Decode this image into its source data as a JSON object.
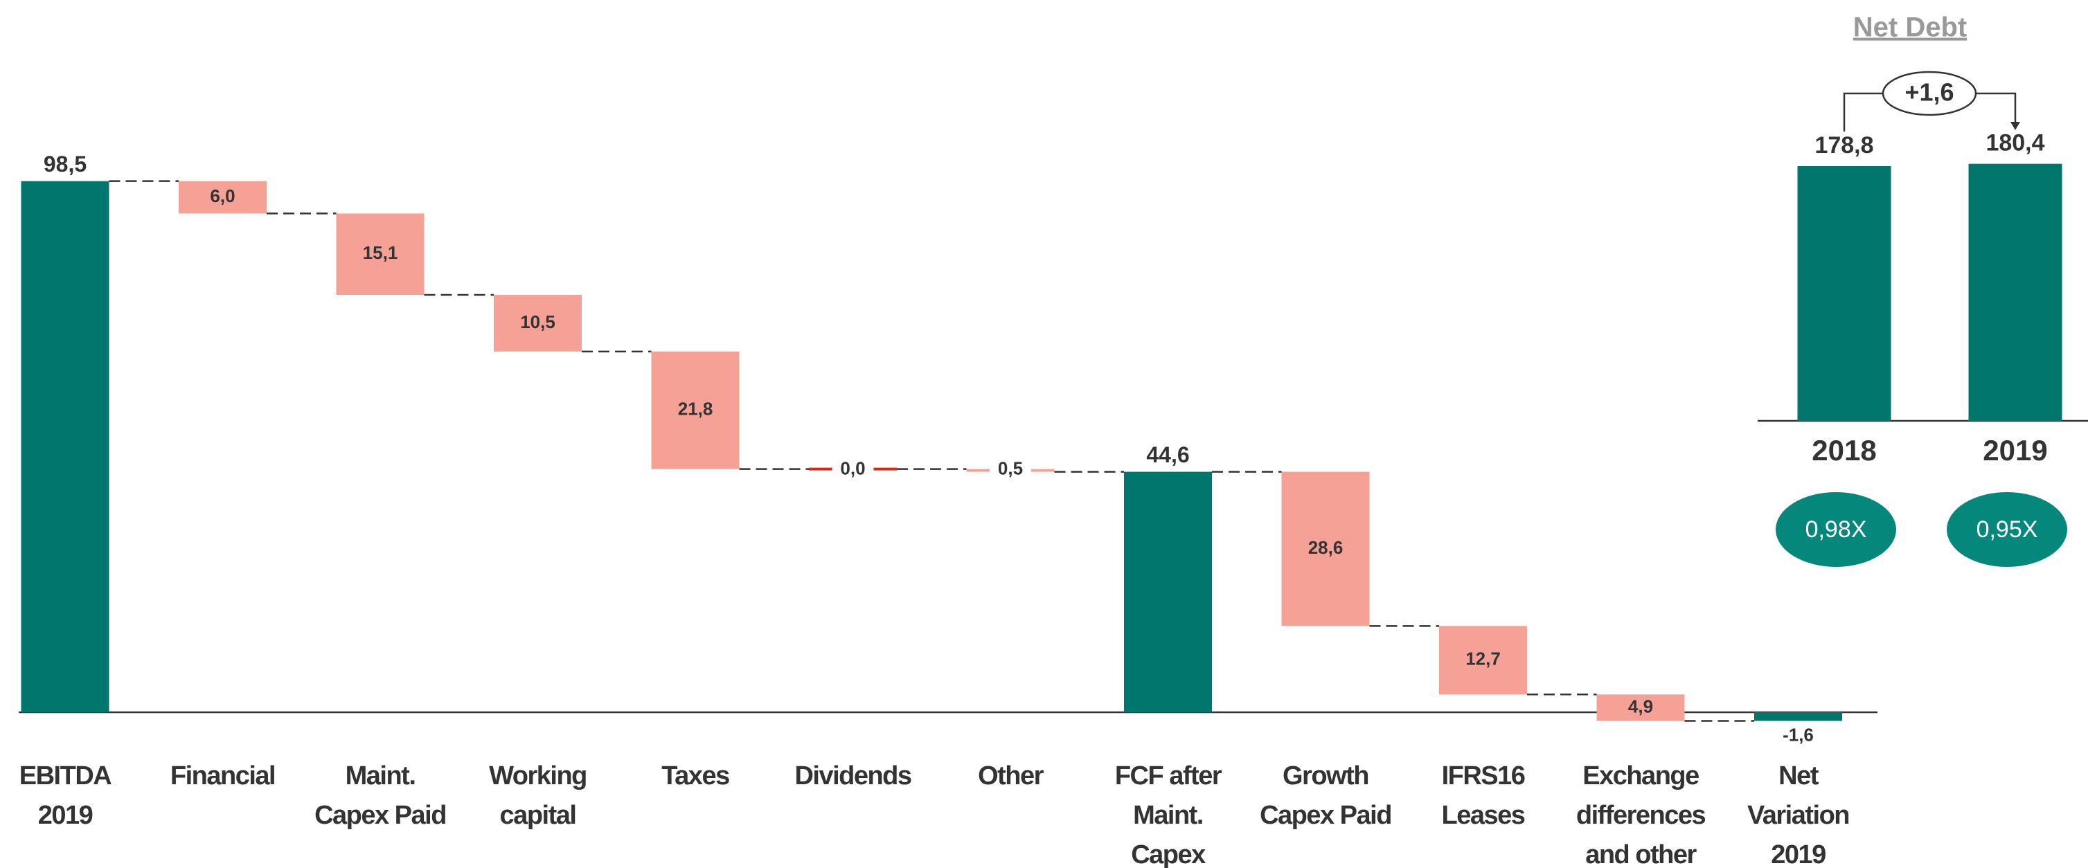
{
  "chart_data": [
    {
      "type": "waterfall",
      "categories": [
        [
          "EBITDA",
          "2019"
        ],
        [
          "Financial"
        ],
        [
          "Maint.",
          "Capex Paid"
        ],
        [
          "Working",
          "capital"
        ],
        [
          "Taxes"
        ],
        [
          "Dividends"
        ],
        [
          "Other"
        ],
        [
          "FCF after",
          "Maint.",
          "Capex"
        ],
        [
          "Growth",
          "Capex Paid"
        ],
        [
          "IFRS16",
          "Leases"
        ],
        [
          "Exchange",
          "differences",
          "and other"
        ],
        [
          "Net",
          "Variation",
          "2019"
        ]
      ],
      "values": [
        98.5,
        6.0,
        15.1,
        10.5,
        21.8,
        0.0,
        0.5,
        44.6,
        28.6,
        12.7,
        4.9,
        -1.6
      ],
      "value_labels": [
        "98,5",
        "6,0",
        "15,1",
        "10,5",
        "21,8",
        "0,0",
        "0,5",
        "44,6",
        "28,6",
        "12,7",
        "4,9",
        "-1,6"
      ],
      "measures": [
        "total",
        "decrease",
        "decrease",
        "decrease",
        "decrease",
        "decrease",
        "decrease",
        "total",
        "decrease",
        "decrease",
        "decrease",
        "total"
      ],
      "colors": {
        "total": "#00766c",
        "decrease": "#f6a196",
        "zero": "#d42a1e"
      },
      "ylim": [
        -2,
        100
      ]
    },
    {
      "type": "bar",
      "title": "Net Debt",
      "categories": [
        "2018",
        "2019"
      ],
      "values": [
        178.8,
        180.4
      ],
      "value_labels": [
        "178,8",
        "180,4"
      ],
      "change_label": "+1,6",
      "ratios": [
        "0,98X",
        "0,95X"
      ],
      "color": "#00766c",
      "ratio_color": "#06877c",
      "ylim": [
        0,
        185
      ]
    }
  ]
}
